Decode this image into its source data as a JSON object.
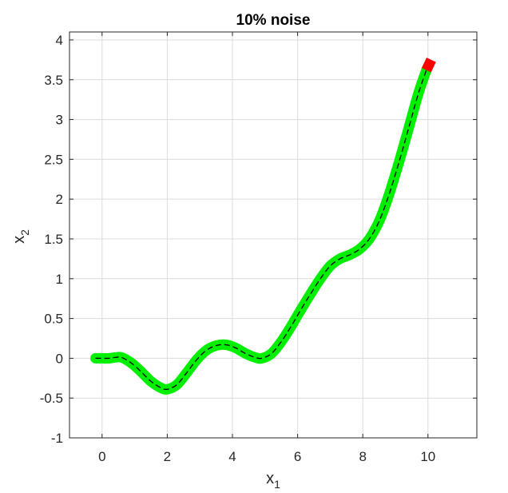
{
  "chart_data": {
    "type": "line",
    "title": "10% noise",
    "xlabel": "x",
    "xlabel_subscript": "1",
    "ylabel": "x",
    "ylabel_subscript": "2",
    "xlim": [
      -1,
      11.5
    ],
    "ylim": [
      -1,
      4.1
    ],
    "xticks": [
      0,
      2,
      4,
      6,
      8,
      10
    ],
    "yticks": [
      -1,
      -0.5,
      0,
      0.5,
      1,
      1.5,
      2,
      2.5,
      3,
      3.5,
      4
    ],
    "xtick_labels": [
      "0",
      "2",
      "4",
      "6",
      "8",
      "10"
    ],
    "ytick_labels": [
      "-1",
      "-0.5",
      "0",
      "0.5",
      "1",
      "1.5",
      "2",
      "2.5",
      "3",
      "3.5",
      "4"
    ],
    "grid": true,
    "series": [
      {
        "style": "thick green band (noisy data)",
        "color": "#00ee00",
        "x": [
          -0.2,
          0,
          0.2,
          0.4,
          0.6,
          0.9,
          1.2,
          1.5,
          1.8,
          2.0,
          2.3,
          2.6,
          2.9,
          3.2,
          3.5,
          3.8,
          4.1,
          4.4,
          4.7,
          4.9,
          5.2,
          5.5,
          5.8,
          6.1,
          6.4,
          6.7,
          7.0,
          7.3,
          7.6,
          7.9,
          8.2,
          8.5,
          8.8,
          9.1,
          9.4,
          9.7,
          9.95
        ],
        "y": [
          0.0,
          0.0,
          0.0,
          0.01,
          0.01,
          -0.06,
          -0.17,
          -0.29,
          -0.37,
          -0.39,
          -0.33,
          -0.18,
          -0.02,
          0.1,
          0.16,
          0.17,
          0.13,
          0.06,
          0.01,
          0.0,
          0.06,
          0.21,
          0.4,
          0.61,
          0.81,
          1.0,
          1.16,
          1.25,
          1.3,
          1.37,
          1.5,
          1.72,
          2.05,
          2.45,
          2.88,
          3.32,
          3.62
        ]
      },
      {
        "style": "black dashed line (true trajectory)",
        "color": "#000000",
        "x": [
          -0.2,
          0,
          0.2,
          0.4,
          0.6,
          0.9,
          1.2,
          1.5,
          1.8,
          2.0,
          2.3,
          2.6,
          2.9,
          3.2,
          3.5,
          3.8,
          4.1,
          4.4,
          4.7,
          4.9,
          5.2,
          5.5,
          5.8,
          6.1,
          6.4,
          6.7,
          7.0,
          7.3,
          7.6,
          7.9,
          8.2,
          8.5,
          8.8,
          9.1,
          9.4,
          9.7,
          9.95
        ],
        "y": [
          0.0,
          0.0,
          0.0,
          0.01,
          0.01,
          -0.06,
          -0.17,
          -0.29,
          -0.37,
          -0.39,
          -0.33,
          -0.18,
          -0.02,
          0.1,
          0.16,
          0.17,
          0.13,
          0.06,
          0.01,
          0.0,
          0.06,
          0.21,
          0.4,
          0.61,
          0.81,
          1.0,
          1.16,
          1.25,
          1.3,
          1.37,
          1.5,
          1.72,
          2.05,
          2.45,
          2.88,
          3.32,
          3.62
        ]
      },
      {
        "style": "thick red band (end segment)",
        "color": "#ff0000",
        "x": [
          9.95,
          10.1
        ],
        "y": [
          3.62,
          3.75
        ]
      }
    ]
  }
}
